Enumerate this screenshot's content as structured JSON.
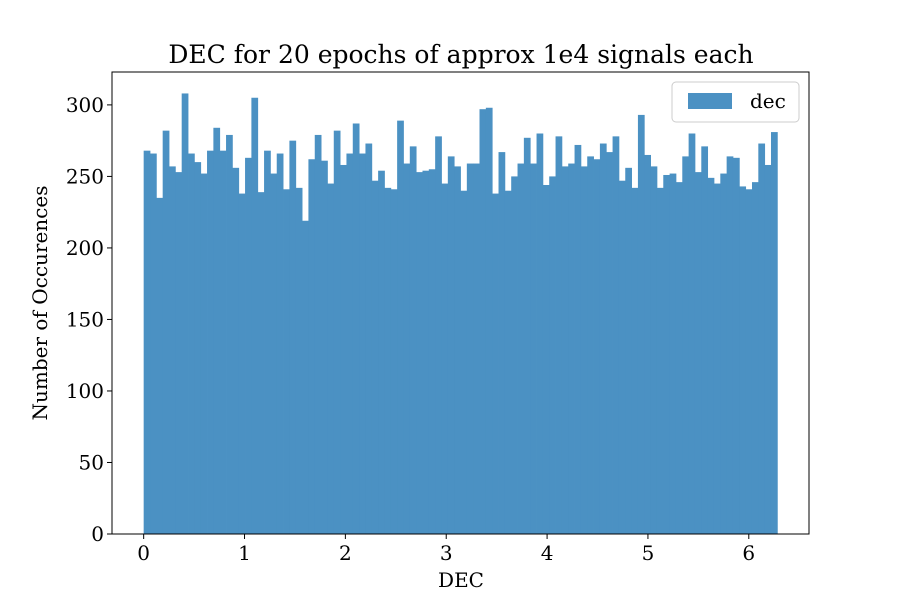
{
  "chart_data": {
    "type": "bar",
    "title": "DEC for 20 epochs of approx 1e4 signals each",
    "xlabel": "DEC",
    "ylabel": "Number of Occurences",
    "xlim": [
      -0.314,
      6.597
    ],
    "ylim": [
      0,
      323
    ],
    "x_ticks": [
      0,
      1,
      2,
      3,
      4,
      5,
      6
    ],
    "y_ticks": [
      0,
      50,
      100,
      150,
      200,
      250,
      300
    ],
    "bin_range": [
      0,
      6.283
    ],
    "grid": false,
    "legend_position": "upper right",
    "series": [
      {
        "name": "dec",
        "color": "#4b91c3",
        "values": [
          268,
          266,
          235,
          282,
          257,
          253,
          308,
          266,
          260,
          252,
          268,
          284,
          268,
          279,
          256,
          238,
          263,
          305,
          239,
          268,
          252,
          266,
          241,
          275,
          242,
          219,
          262,
          279,
          261,
          245,
          282,
          258,
          266,
          287,
          266,
          273,
          247,
          254,
          242,
          241,
          289,
          259,
          271,
          253,
          254,
          255,
          278,
          245,
          264,
          257,
          240,
          259,
          259,
          297,
          298,
          238,
          267,
          240,
          250,
          259,
          277,
          259,
          280,
          244,
          250,
          278,
          257,
          259,
          272,
          257,
          264,
          262,
          273,
          267,
          278,
          247,
          256,
          242,
          293,
          265,
          257,
          242,
          251,
          252,
          246,
          264,
          280,
          253,
          271,
          249,
          245,
          252,
          264,
          263,
          243,
          241,
          246,
          273,
          258,
          281
        ]
      }
    ]
  }
}
